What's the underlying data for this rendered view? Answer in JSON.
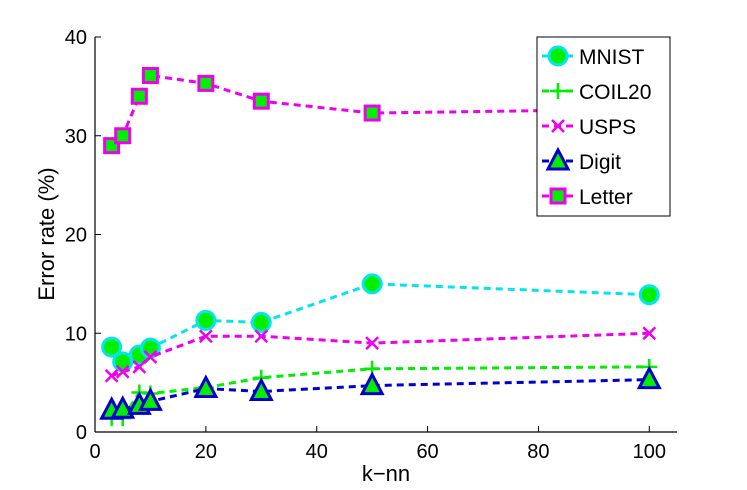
{
  "chart_data": {
    "type": "line",
    "title": "",
    "xlabel": "k−nn",
    "ylabel": "Error rate (%)",
    "xlim": [
      0,
      105
    ],
    "ylim": [
      0,
      40
    ],
    "xticks": [
      0,
      20,
      40,
      60,
      80,
      100
    ],
    "yticks": [
      0,
      10,
      20,
      30,
      40
    ],
    "grid": false,
    "legend_position": "top-right",
    "x": [
      3,
      5,
      8,
      10,
      20,
      30,
      50,
      100
    ],
    "series": [
      {
        "name": "MNIST",
        "marker": "circle",
        "color": "#00e5ee",
        "face_color": "#00ee00",
        "values": [
          8.6,
          7.1,
          7.8,
          8.5,
          11.3,
          11.1,
          15.0,
          13.9
        ]
      },
      {
        "name": "COIL20",
        "marker": "plus",
        "color": "#00ee00",
        "face_color": "#00ee00",
        "values": [
          1.4,
          1.4,
          4.0,
          3.9,
          4.5,
          5.5,
          6.4,
          6.6
        ]
      },
      {
        "name": "USPS",
        "marker": "x",
        "color": "#ee00ee",
        "face_color": "#ee00ee",
        "values": [
          5.7,
          6.1,
          6.6,
          7.6,
          9.7,
          9.7,
          9.0,
          10.0
        ]
      },
      {
        "name": "Digit",
        "marker": "triangle",
        "color": "#0000cc",
        "face_color": "#00ee00",
        "values": [
          2.2,
          2.3,
          2.7,
          3.1,
          4.4,
          4.1,
          4.7,
          5.3
        ]
      },
      {
        "name": "Letter",
        "marker": "square",
        "color": "#ee00ee",
        "face_color": "#00ee00",
        "values": [
          29.0,
          30.0,
          34.0,
          36.1,
          35.3,
          33.5,
          32.3,
          32.7
        ]
      }
    ]
  }
}
